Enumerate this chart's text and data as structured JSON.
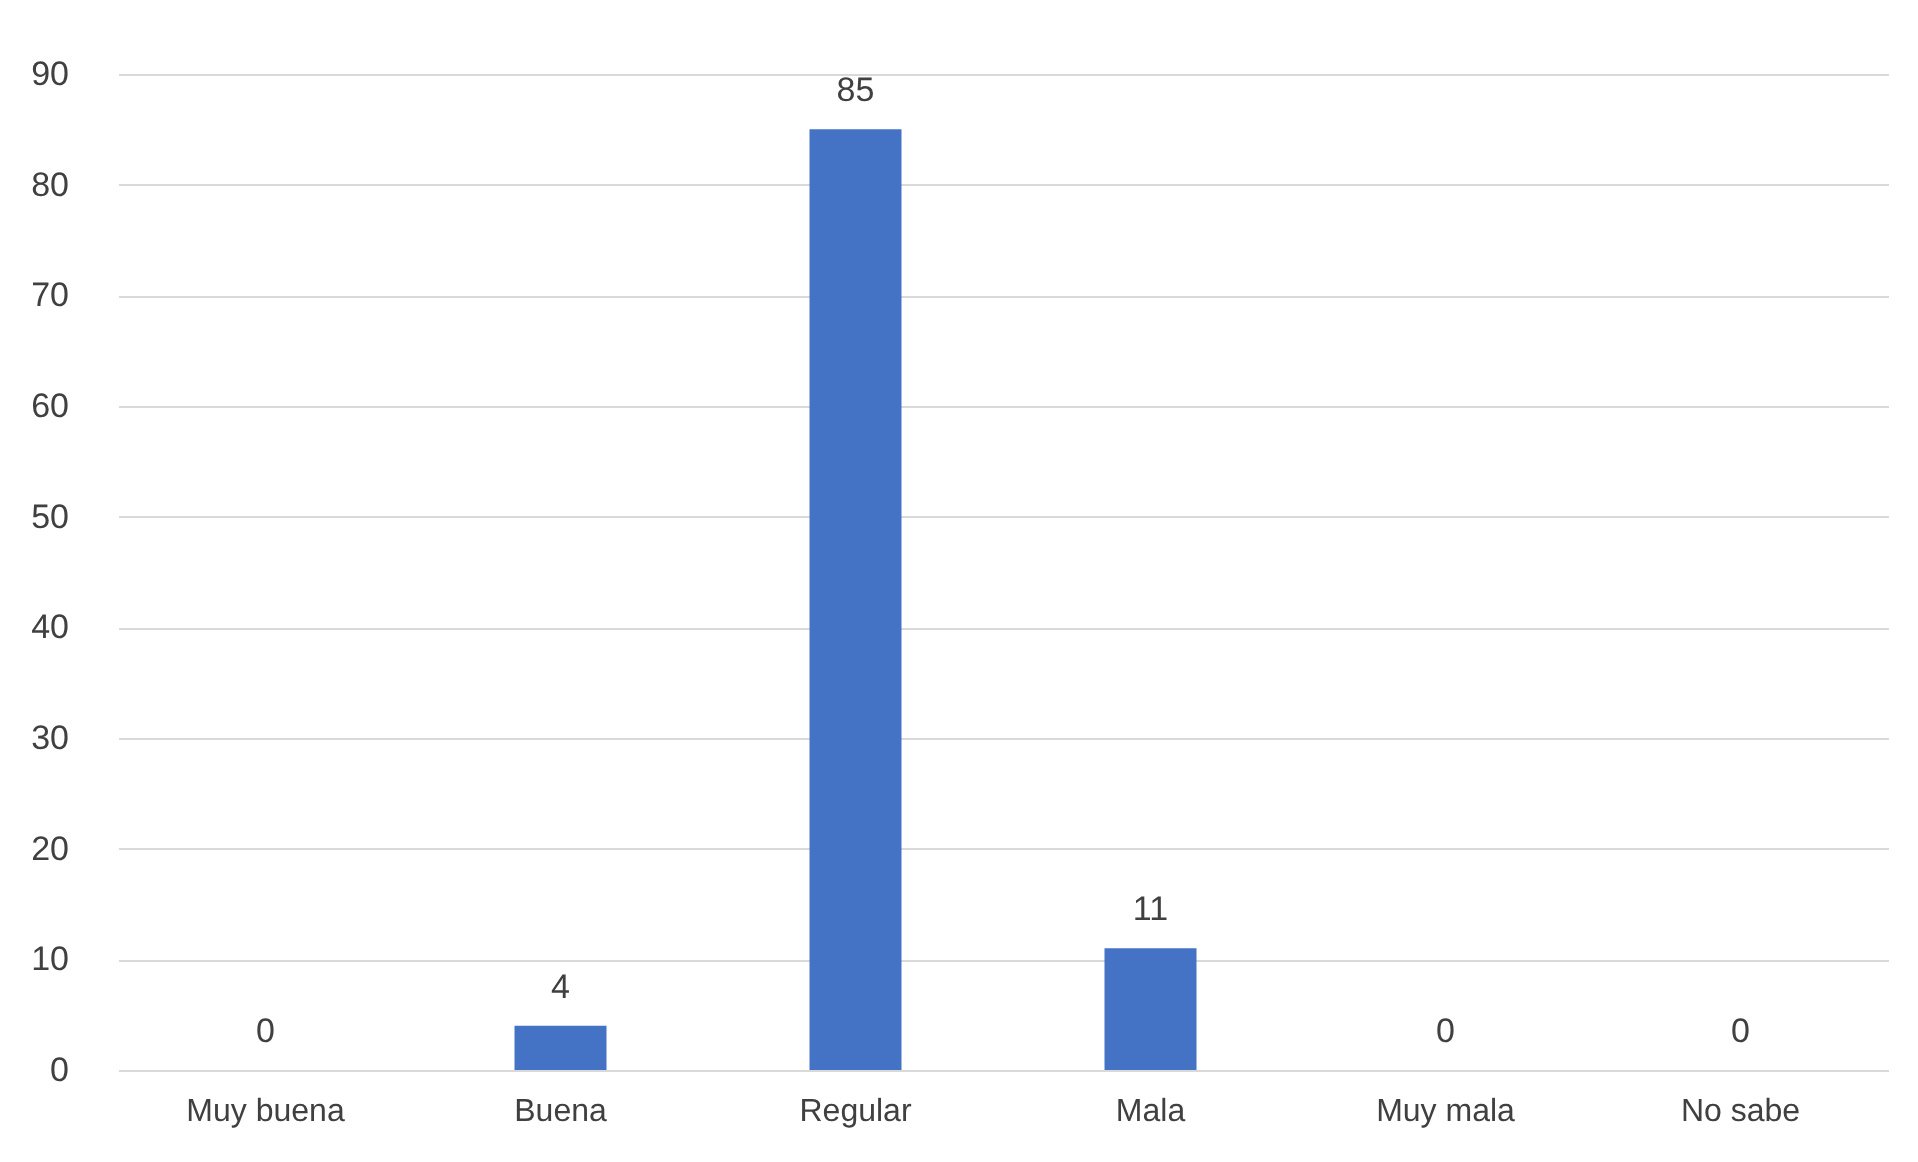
{
  "chart_data": {
    "type": "bar",
    "categories": [
      "Muy buena",
      "Buena",
      "Regular",
      "Mala",
      "Muy mala",
      "No sabe"
    ],
    "values": [
      0,
      4,
      85,
      11,
      0,
      0
    ],
    "color": "#4472c4",
    "ylim": [
      0,
      90
    ],
    "yticks": [
      0,
      10,
      20,
      30,
      40,
      50,
      60,
      70,
      80,
      90
    ],
    "grid": "y",
    "data_labels": true
  }
}
